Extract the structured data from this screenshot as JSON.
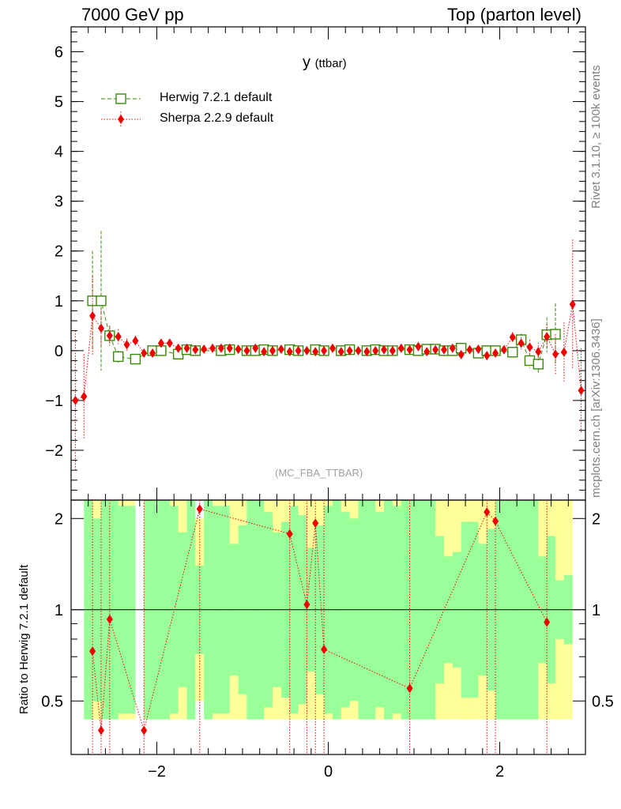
{
  "header": {
    "left": "7000 GeV pp",
    "right": "Top (parton level)"
  },
  "side_labels": {
    "rivet": "Rivet 3.1.10, ≥ 100k events",
    "mcplots": "mcplots.cern.ch [arXiv:1306.3436]"
  },
  "plot": {
    "title_main": "y",
    "title_sub": "(ttbar)",
    "analysis_tag": "(MC_FBA_TTBAR)",
    "ratio_ylabel": "Ratio to Herwig 7.2.1 default"
  },
  "legend": [
    {
      "label": "Herwig 7.2.1 default",
      "color": "#3a8a0a",
      "marker": "open-square",
      "line": "dashed"
    },
    {
      "label": "Sherpa 2.2.9 default",
      "color": "#ee0000",
      "marker": "filled-diamond",
      "line": "dotted"
    }
  ],
  "colors": {
    "herwig": "#3a8a0a",
    "sherpa": "#ee0000",
    "band_inner": "#99ff99",
    "band_outer": "#ffff99"
  },
  "chart_data": [
    {
      "type": "scatter",
      "panel": "main",
      "xlim": [
        -3.0,
        3.0
      ],
      "ylim": [
        -3,
        6.5
      ],
      "yticks": [
        -2,
        -1,
        0,
        1,
        2,
        3,
        4,
        5,
        6
      ],
      "series": [
        {
          "name": "Herwig 7.2.1 default",
          "points": [
            {
              "x": -2.75,
              "y": 1.0,
              "err": 1.0
            },
            {
              "x": -2.65,
              "y": 1.0,
              "err": 1.4
            },
            {
              "x": -2.55,
              "y": 0.3,
              "err": 0.2
            },
            {
              "x": -2.45,
              "y": -0.12,
              "err": 0.12
            },
            {
              "x": -2.25,
              "y": -0.17,
              "err": 0.1
            },
            {
              "x": -2.05,
              "y": 0.0,
              "err": 0.08
            },
            {
              "x": -1.95,
              "y": 0.0,
              "err": 0.07
            },
            {
              "x": -1.75,
              "y": -0.07,
              "err": 0.06
            },
            {
              "x": -1.65,
              "y": 0.02,
              "err": 0.05
            },
            {
              "x": -1.55,
              "y": 0.0,
              "err": 0.05
            },
            {
              "x": -1.25,
              "y": 0.0,
              "err": 0.04
            },
            {
              "x": -1.15,
              "y": 0.02,
              "err": 0.04
            },
            {
              "x": -0.95,
              "y": 0.0,
              "err": 0.04
            },
            {
              "x": -0.85,
              "y": 0.0,
              "err": 0.04
            },
            {
              "x": -0.75,
              "y": 0.02,
              "err": 0.04
            },
            {
              "x": -0.65,
              "y": 0.0,
              "err": 0.04
            },
            {
              "x": -0.45,
              "y": 0.02,
              "err": 0.04
            },
            {
              "x": -0.35,
              "y": 0.0,
              "err": 0.04
            },
            {
              "x": -0.15,
              "y": 0.02,
              "err": 0.04
            },
            {
              "x": -0.05,
              "y": 0.0,
              "err": 0.04
            },
            {
              "x": 0.15,
              "y": 0.0,
              "err": 0.04
            },
            {
              "x": 0.25,
              "y": 0.02,
              "err": 0.04
            },
            {
              "x": 0.45,
              "y": 0.0,
              "err": 0.04
            },
            {
              "x": 0.55,
              "y": 0.02,
              "err": 0.04
            },
            {
              "x": 0.65,
              "y": 0.0,
              "err": 0.04
            },
            {
              "x": 0.75,
              "y": 0.0,
              "err": 0.04
            },
            {
              "x": 0.95,
              "y": 0.02,
              "err": 0.04
            },
            {
              "x": 1.05,
              "y": 0.0,
              "err": 0.04
            },
            {
              "x": 1.15,
              "y": 0.03,
              "err": 0.04
            },
            {
              "x": 1.25,
              "y": 0.03,
              "err": 0.04
            },
            {
              "x": 1.35,
              "y": 0.0,
              "err": 0.05
            },
            {
              "x": 1.45,
              "y": 0.0,
              "err": 0.05
            },
            {
              "x": 1.55,
              "y": 0.05,
              "err": 0.05
            },
            {
              "x": 1.75,
              "y": -0.05,
              "err": 0.06
            },
            {
              "x": 1.85,
              "y": 0.0,
              "err": 0.07
            },
            {
              "x": 1.95,
              "y": 0.0,
              "err": 0.07
            },
            {
              "x": 2.15,
              "y": -0.03,
              "err": 0.08
            },
            {
              "x": 2.25,
              "y": 0.22,
              "err": 0.12
            },
            {
              "x": 2.35,
              "y": -0.2,
              "err": 0.15
            },
            {
              "x": 2.45,
              "y": -0.27,
              "err": 0.18
            },
            {
              "x": 2.55,
              "y": 0.32,
              "err": 0.35
            },
            {
              "x": 2.65,
              "y": 0.33,
              "err": 0.62
            }
          ]
        },
        {
          "name": "Sherpa 2.2.9 default",
          "points": [
            {
              "x": -2.95,
              "y": -1.0,
              "err": 1.4
            },
            {
              "x": -2.85,
              "y": -0.92,
              "err": 0.85
            },
            {
              "x": -2.75,
              "y": 0.7,
              "err": 0.8
            },
            {
              "x": -2.65,
              "y": 0.45,
              "err": 0.35
            },
            {
              "x": -2.55,
              "y": 0.3,
              "err": 0.2
            },
            {
              "x": -2.45,
              "y": 0.28,
              "err": 0.15
            },
            {
              "x": -2.35,
              "y": 0.12,
              "err": 0.12
            },
            {
              "x": -2.25,
              "y": 0.2,
              "err": 0.1
            },
            {
              "x": -2.15,
              "y": -0.05,
              "err": 0.08
            },
            {
              "x": -2.05,
              "y": -0.05,
              "err": 0.08
            },
            {
              "x": -1.95,
              "y": 0.15,
              "err": 0.07
            },
            {
              "x": -1.85,
              "y": 0.15,
              "err": 0.07
            },
            {
              "x": -1.75,
              "y": 0.05,
              "err": 0.06
            },
            {
              "x": -1.65,
              "y": 0.05,
              "err": 0.05
            },
            {
              "x": -1.55,
              "y": 0.02,
              "err": 0.05
            },
            {
              "x": -1.45,
              "y": 0.03,
              "err": 0.05
            },
            {
              "x": -1.35,
              "y": 0.05,
              "err": 0.05
            },
            {
              "x": -1.25,
              "y": 0.05,
              "err": 0.04
            },
            {
              "x": -1.15,
              "y": 0.05,
              "err": 0.04
            },
            {
              "x": -1.05,
              "y": 0.03,
              "err": 0.04
            },
            {
              "x": -0.95,
              "y": 0.0,
              "err": 0.04
            },
            {
              "x": -0.85,
              "y": 0.05,
              "err": 0.04
            },
            {
              "x": -0.75,
              "y": -0.02,
              "err": 0.04
            },
            {
              "x": -0.65,
              "y": 0.0,
              "err": 0.04
            },
            {
              "x": -0.55,
              "y": 0.03,
              "err": 0.04
            },
            {
              "x": -0.45,
              "y": -0.02,
              "err": 0.04
            },
            {
              "x": -0.35,
              "y": 0.0,
              "err": 0.04
            },
            {
              "x": -0.25,
              "y": 0.0,
              "err": 0.04
            },
            {
              "x": -0.15,
              "y": -0.02,
              "err": 0.04
            },
            {
              "x": -0.05,
              "y": 0.0,
              "err": 0.04
            },
            {
              "x": 0.05,
              "y": 0.05,
              "err": 0.04
            },
            {
              "x": 0.15,
              "y": -0.02,
              "err": 0.04
            },
            {
              "x": 0.25,
              "y": 0.0,
              "err": 0.04
            },
            {
              "x": 0.35,
              "y": 0.0,
              "err": 0.04
            },
            {
              "x": 0.45,
              "y": -0.02,
              "err": 0.04
            },
            {
              "x": 0.55,
              "y": 0.0,
              "err": 0.04
            },
            {
              "x": 0.65,
              "y": 0.02,
              "err": 0.04
            },
            {
              "x": 0.75,
              "y": 0.0,
              "err": 0.04
            },
            {
              "x": 0.85,
              "y": 0.05,
              "err": 0.04
            },
            {
              "x": 0.95,
              "y": 0.02,
              "err": 0.04
            },
            {
              "x": 1.05,
              "y": 0.08,
              "err": 0.04
            },
            {
              "x": 1.15,
              "y": -0.02,
              "err": 0.04
            },
            {
              "x": 1.25,
              "y": 0.02,
              "err": 0.04
            },
            {
              "x": 1.35,
              "y": 0.02,
              "err": 0.05
            },
            {
              "x": 1.45,
              "y": 0.05,
              "err": 0.05
            },
            {
              "x": 1.55,
              "y": -0.08,
              "err": 0.05
            },
            {
              "x": 1.65,
              "y": 0.02,
              "err": 0.06
            },
            {
              "x": 1.75,
              "y": 0.03,
              "err": 0.06
            },
            {
              "x": 1.85,
              "y": -0.1,
              "err": 0.07
            },
            {
              "x": 1.95,
              "y": -0.05,
              "err": 0.07
            },
            {
              "x": 2.05,
              "y": 0.02,
              "err": 0.08
            },
            {
              "x": 2.15,
              "y": 0.27,
              "err": 0.1
            },
            {
              "x": 2.25,
              "y": 0.15,
              "err": 0.12
            },
            {
              "x": 2.35,
              "y": 0.07,
              "err": 0.15
            },
            {
              "x": 2.45,
              "y": -0.02,
              "err": 0.18
            },
            {
              "x": 2.55,
              "y": 0.28,
              "err": 0.25
            },
            {
              "x": 2.65,
              "y": -0.07,
              "err": 0.4
            },
            {
              "x": 2.75,
              "y": -0.03,
              "err": 0.6
            },
            {
              "x": 2.85,
              "y": 0.93,
              "err": 1.3
            },
            {
              "x": 2.95,
              "y": -0.8,
              "err": 0.85
            }
          ]
        }
      ]
    },
    {
      "type": "scatter",
      "panel": "ratio",
      "xlim": [
        -3.0,
        3.0
      ],
      "ylim": [
        0.333,
        2.3
      ],
      "log_y": true,
      "yticks": [
        0.5,
        1,
        2
      ],
      "xticks": [
        -2,
        0,
        2
      ],
      "reference": 1,
      "band_inner_upper": [
        2.3,
        2.0,
        2.3,
        2.3,
        2.2,
        2.2,
        0,
        2.3,
        2.3,
        2.3,
        2.2,
        1.8,
        2.3,
        1.4,
        2.3,
        2.2,
        2.2,
        1.65,
        1.9,
        2.3,
        2.3,
        2.1,
        1.8,
        1.95,
        2.2,
        2.05,
        1.6,
        1.9,
        2.2,
        2.3,
        2.1,
        2.0,
        2.3,
        2.3,
        2.1,
        2.3,
        2.2,
        2.3,
        2.3,
        2.3,
        2.3,
        1.75,
        1.5,
        1.55,
        1.95,
        1.95,
        1.65,
        1.85,
        2.3,
        2.3,
        2.3,
        2.3,
        2.3,
        1.5,
        1.75,
        1.25,
        1.3
      ],
      "band_outer_upper": [
        2.3,
        2.3,
        2.3,
        2.3,
        2.3,
        2.3,
        0,
        2.3,
        2.3,
        2.3,
        2.3,
        2.3,
        2.3,
        2.0,
        2.3,
        2.3,
        2.3,
        2.3,
        2.3,
        2.3,
        2.3,
        2.3,
        2.3,
        2.3,
        2.3,
        2.3,
        2.3,
        2.3,
        2.3,
        2.3,
        2.3,
        2.3,
        2.3,
        2.3,
        2.3,
        2.3,
        2.3,
        2.3,
        2.3,
        2.3,
        2.3,
        2.3,
        2.3,
        2.3,
        2.3,
        2.3,
        2.3,
        2.3,
        2.3,
        2.3,
        2.3,
        2.3,
        2.3,
        2.3,
        2.3,
        2.3,
        2.3
      ],
      "series": [
        {
          "name": "Sherpa 2.2.9 default",
          "points": [
            {
              "x": -2.75,
              "y": 0.73
            },
            {
              "x": -2.65,
              "y": 0.4
            },
            {
              "x": -2.55,
              "y": 0.93
            },
            {
              "x": -2.15,
              "y": 0.4
            },
            {
              "x": -1.5,
              "y": 2.15
            },
            {
              "x": -0.45,
              "y": 1.78
            },
            {
              "x": -0.25,
              "y": 1.04
            },
            {
              "x": -0.15,
              "y": 1.93
            },
            {
              "x": -0.05,
              "y": 0.74
            },
            {
              "x": 0.95,
              "y": 0.55
            },
            {
              "x": 1.85,
              "y": 2.1
            },
            {
              "x": 1.95,
              "y": 1.96
            },
            {
              "x": 2.55,
              "y": 0.91
            }
          ]
        }
      ]
    }
  ]
}
